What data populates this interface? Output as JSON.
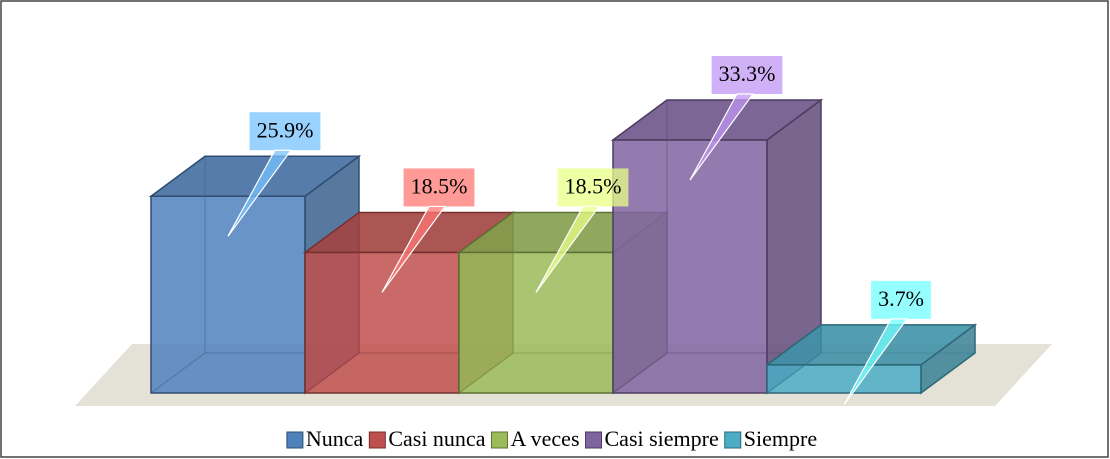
{
  "chart_data": {
    "type": "bar3d",
    "categories": [
      "Nunca",
      "Casi nunca",
      "A veces",
      "Casi siempre",
      "Siempre"
    ],
    "values": [
      25.9,
      18.5,
      18.5,
      33.3,
      3.7
    ],
    "value_labels": [
      "25.9%",
      "18.5%",
      "18.5%",
      "33.3%",
      "3.7%"
    ],
    "colors": [
      "#4f81bd",
      "#c0504d",
      "#9bbb59",
      "#8064a2",
      "#4bacc6"
    ],
    "legend": "bottom"
  }
}
